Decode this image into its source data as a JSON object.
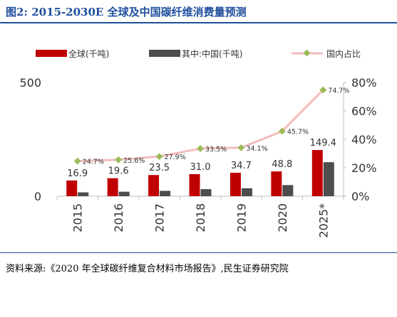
{
  "header": {
    "title": "图2: 2015-2030E 全球及中国碳纤维消费量预测"
  },
  "footer": {
    "source": "资料来源:《2020 年全球碳纤维复合材料市场报告》,民生证券研究院"
  },
  "colors": {
    "global": "#c00000",
    "china": "#4d4d4d",
    "share_line": "#f2bcbc",
    "share_marker": "#9bbb59",
    "title": "#1f4e9c"
  },
  "chart_data": {
    "type": "bar",
    "title": "",
    "categories": [
      "2015",
      "2016",
      "2017",
      "2018",
      "2019",
      "2020",
      "2025*"
    ],
    "series": [
      {
        "name": "全球(千吨)",
        "type": "bar",
        "axis": "left",
        "values": [
          69,
          79,
          93,
          97,
          103,
          109,
          203
        ]
      },
      {
        "name": "其中:中国(千吨)",
        "type": "bar",
        "axis": "left",
        "values": [
          16.9,
          19.6,
          23.5,
          31.0,
          34.7,
          48.8,
          149.4
        ]
      },
      {
        "name": "国内占比",
        "type": "line",
        "axis": "right",
        "values": [
          24.7,
          25.6,
          27.9,
          33.5,
          34.1,
          45.7,
          74.7
        ]
      }
    ],
    "bar_value_labels": [
      "16.9",
      "19.6",
      "23.5",
      "31.0",
      "34.7",
      "48.8",
      "149.4"
    ],
    "line_value_labels": [
      "24.7%",
      "25.6%",
      "27.9%",
      "33.5%",
      "34.1%",
      "45.7%",
      "74.7%"
    ],
    "y_left": {
      "min": 0,
      "max": 500,
      "ticks": [
        "0",
        "500"
      ]
    },
    "y_right": {
      "min": 0,
      "max": 80,
      "ticks": [
        "0%",
        "20%",
        "40%",
        "60%",
        "80%"
      ]
    },
    "legend": "top"
  }
}
